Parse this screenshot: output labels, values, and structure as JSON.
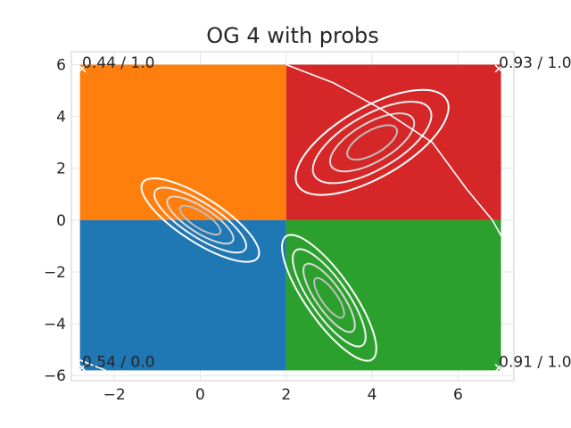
{
  "chart_data": {
    "type": "heatmap",
    "title": "OG 4 with probs",
    "xlabel": "",
    "ylabel": "",
    "xlim": [
      -3.0,
      7.3
    ],
    "ylim": [
      -6.2,
      6.5
    ],
    "xticks": [
      -2,
      0,
      2,
      4,
      6
    ],
    "yticks": [
      -6,
      -4,
      -2,
      0,
      2,
      4,
      6
    ],
    "xtick_labels": [
      "−2",
      "0",
      "2",
      "4",
      "6"
    ],
    "ytick_labels": [
      "−6",
      "−4",
      "−2",
      "0",
      "2",
      "4",
      "6"
    ],
    "grid": true,
    "regions": [
      {
        "name": "top-left",
        "color": "#ff7f0e",
        "x": [
          -2.8,
          2.0
        ],
        "y": [
          0.0,
          6.0
        ]
      },
      {
        "name": "top-right",
        "color": "#d62728",
        "x": [
          2.0,
          7.0
        ],
        "y": [
          0.0,
          6.0
        ]
      },
      {
        "name": "bottom-left",
        "color": "#1f77b4",
        "x": [
          -2.8,
          2.0
        ],
        "y": [
          -5.8,
          0.0
        ]
      },
      {
        "name": "bottom-right",
        "color": "#2ca02c",
        "x": [
          2.0,
          7.0
        ],
        "y": [
          -5.8,
          0.0
        ]
      }
    ],
    "gaussians": [
      {
        "center": [
          0.0,
          0.0
        ],
        "angle_deg": -33,
        "levels": [
          [
            1.6,
            0.85
          ],
          [
            1.25,
            0.65
          ],
          [
            0.9,
            0.48
          ],
          [
            0.55,
            0.3
          ]
        ],
        "colors": [
          "#ffffff",
          "#f0f0f0",
          "#d8d8d8",
          "#bdbdbd"
        ]
      },
      {
        "center": [
          4.0,
          3.0
        ],
        "angle_deg": 30,
        "levels": [
          [
            2.0,
            1.35
          ],
          [
            1.55,
            1.05
          ],
          [
            1.1,
            0.75
          ],
          [
            0.65,
            0.45
          ]
        ],
        "colors": [
          "#ffffff",
          "#f0f0f0",
          "#d8d8d8",
          "#bdbdbd"
        ]
      },
      {
        "center": [
          3.0,
          -3.0
        ],
        "angle_deg": -55,
        "levels": [
          [
            1.75,
            0.9
          ],
          [
            1.35,
            0.7
          ],
          [
            0.95,
            0.5
          ],
          [
            0.55,
            0.3
          ]
        ],
        "colors": [
          "#ffffff",
          "#f0f0f0",
          "#d8d8d8",
          "#bdbdbd"
        ]
      }
    ],
    "boundary_lines": [
      {
        "points": [
          [
            2.0,
            6.0
          ],
          [
            3.1,
            5.3
          ],
          [
            4.2,
            4.3
          ],
          [
            5.4,
            3.0
          ],
          [
            6.2,
            1.2
          ],
          [
            6.8,
            0.0
          ],
          [
            7.0,
            -0.6
          ]
        ]
      },
      {
        "points": [
          [
            -2.8,
            -5.4
          ],
          [
            -2.5,
            -5.6
          ],
          [
            -2.2,
            -5.8
          ]
        ]
      }
    ],
    "corner_points": [
      {
        "x": -2.75,
        "y": 5.85,
        "label": "0.44 / 1.0"
      },
      {
        "x": 6.95,
        "y": 5.85,
        "label": "0.93 / 1.0"
      },
      {
        "x": -2.75,
        "y": -5.7,
        "label": "0.54 / 0.0"
      },
      {
        "x": 6.95,
        "y": -5.7,
        "label": "0.91 / 1.0"
      }
    ]
  }
}
